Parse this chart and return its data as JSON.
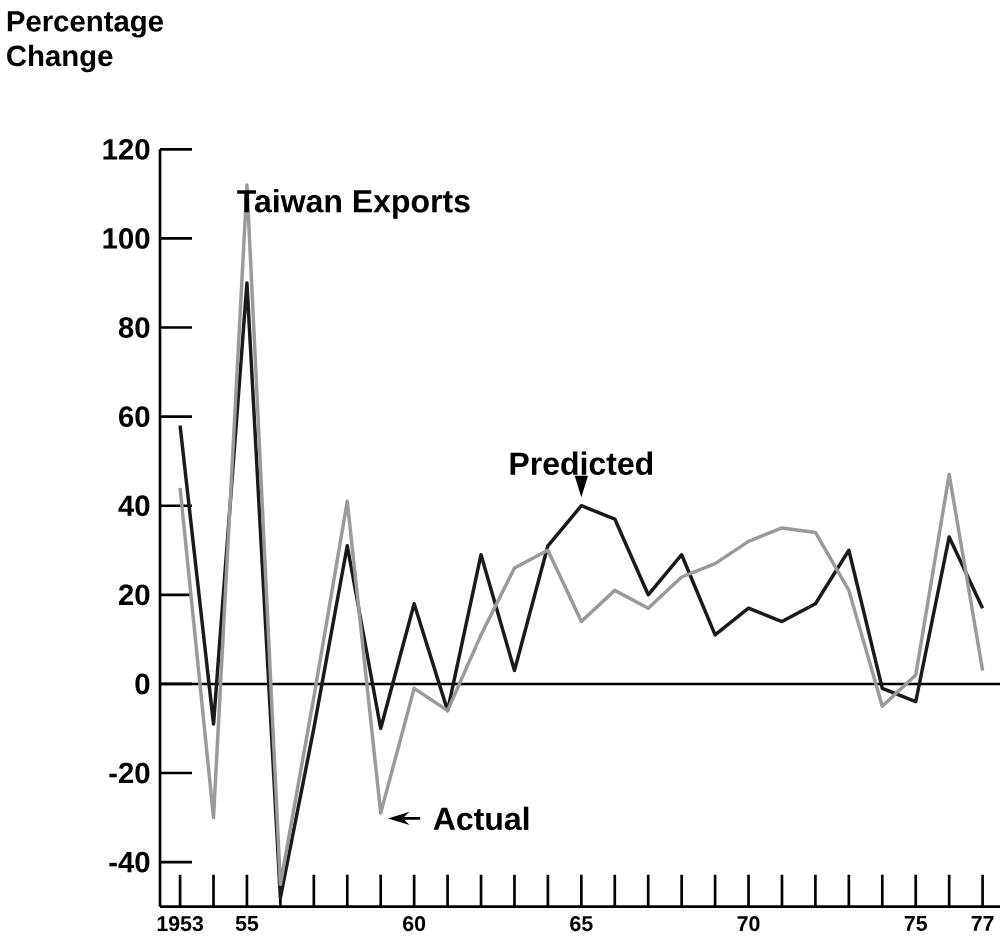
{
  "chart_data": {
    "type": "line",
    "title": "Taiwan Exports",
    "ylabel": "Percentage Change",
    "x": [
      1953,
      1954,
      1955,
      1956,
      1957,
      1958,
      1959,
      1960,
      1961,
      1962,
      1963,
      1964,
      1965,
      1966,
      1967,
      1968,
      1969,
      1970,
      1971,
      1972,
      1973,
      1974,
      1975,
      1976,
      1977
    ],
    "series": [
      {
        "name": "Predicted",
        "color": "#1a1a1a",
        "values": [
          58,
          -9,
          90,
          -48,
          -10,
          31,
          -10,
          18,
          -6,
          29,
          3,
          31,
          40,
          37,
          20,
          29,
          11,
          17,
          14,
          18,
          30,
          -1,
          -4,
          33,
          17
        ]
      },
      {
        "name": "Actual",
        "color": "#9a9a9a",
        "values": [
          44,
          -30,
          112,
          -45,
          -3,
          41,
          -29,
          -1,
          -6,
          11,
          26,
          30,
          14,
          21,
          17,
          24,
          27,
          32,
          35,
          34,
          21,
          -5,
          2,
          47,
          3
        ]
      }
    ],
    "xlim": [
      1952.4,
      1977.6
    ],
    "ylim": [
      -50,
      120
    ],
    "xticks": [
      {
        "value": 1953,
        "label": "1953"
      },
      {
        "value": 1954,
        "label": null
      },
      {
        "value": 1955,
        "label": "55"
      },
      {
        "value": 1956,
        "label": null
      },
      {
        "value": 1957,
        "label": null
      },
      {
        "value": 1958,
        "label": null
      },
      {
        "value": 1959,
        "label": null
      },
      {
        "value": 1960,
        "label": "60"
      },
      {
        "value": 1961,
        "label": null
      },
      {
        "value": 1962,
        "label": null
      },
      {
        "value": 1963,
        "label": null
      },
      {
        "value": 1964,
        "label": null
      },
      {
        "value": 1965,
        "label": "65"
      },
      {
        "value": 1966,
        "label": null
      },
      {
        "value": 1967,
        "label": null
      },
      {
        "value": 1968,
        "label": null
      },
      {
        "value": 1969,
        "label": null
      },
      {
        "value": 1970,
        "label": "70"
      },
      {
        "value": 1971,
        "label": null
      },
      {
        "value": 1972,
        "label": null
      },
      {
        "value": 1973,
        "label": null
      },
      {
        "value": 1974,
        "label": null
      },
      {
        "value": 1975,
        "label": "75"
      },
      {
        "value": 1976,
        "label": null
      },
      {
        "value": 1977,
        "label": "77"
      }
    ],
    "yticks": [
      -40,
      -20,
      0,
      20,
      40,
      60,
      80,
      100,
      120
    ],
    "ref_lines": [
      {
        "axis": "y",
        "value": 0
      }
    ],
    "marker": "none",
    "line_style": "solid"
  }
}
